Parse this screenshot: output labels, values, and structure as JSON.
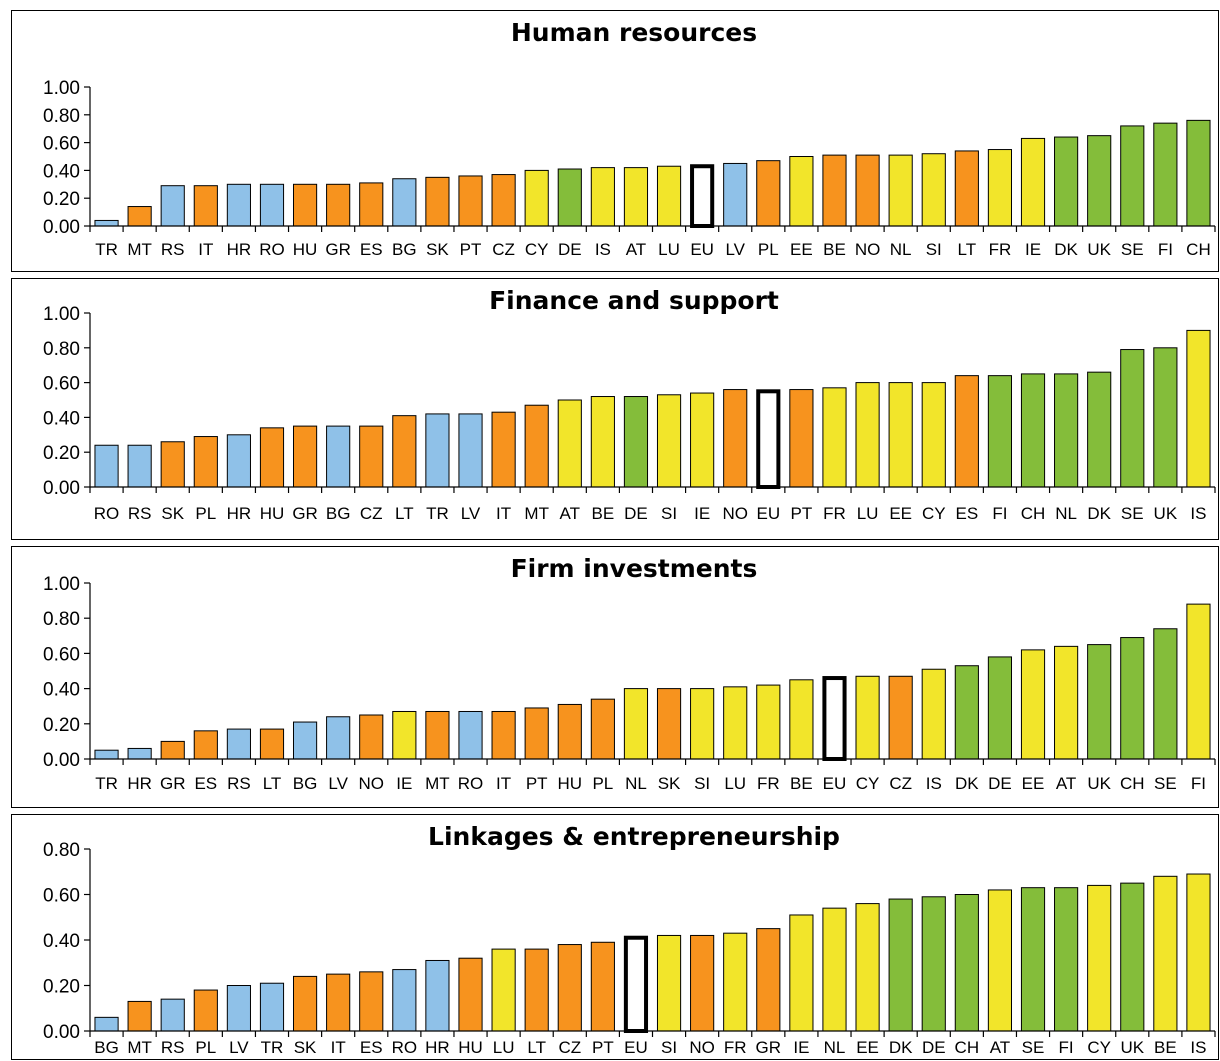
{
  "colors": {
    "blue": "#8fc1e8",
    "orange": "#f7931e",
    "yellow": "#f2e52a",
    "green": "#84bd3a",
    "eu": "#ffffff"
  },
  "chart_data": [
    {
      "type": "bar",
      "title": "Human resources",
      "ylim": [
        0,
        1.0
      ],
      "yticks": [
        "0.00",
        "0.20",
        "0.40",
        "0.60",
        "0.80",
        "1.00"
      ],
      "grid": false,
      "categories": [
        "TR",
        "MT",
        "RS",
        "IT",
        "HR",
        "RO",
        "HU",
        "GR",
        "ES",
        "BG",
        "SK",
        "PT",
        "CZ",
        "CY",
        "DE",
        "IS",
        "AT",
        "LU",
        "EU",
        "LV",
        "PL",
        "EE",
        "BE",
        "NO",
        "NL",
        "SI",
        "LT",
        "FR",
        "IE",
        "DK",
        "UK",
        "SE",
        "FI",
        "CH"
      ],
      "values": [
        0.04,
        0.14,
        0.29,
        0.29,
        0.3,
        0.3,
        0.3,
        0.3,
        0.31,
        0.34,
        0.35,
        0.36,
        0.37,
        0.4,
        0.41,
        0.42,
        0.42,
        0.43,
        0.43,
        0.45,
        0.47,
        0.5,
        0.51,
        0.51,
        0.51,
        0.52,
        0.54,
        0.55,
        0.63,
        0.64,
        0.65,
        0.72,
        0.74,
        0.76
      ],
      "colors": [
        "blue",
        "orange",
        "blue",
        "orange",
        "blue",
        "blue",
        "orange",
        "orange",
        "orange",
        "blue",
        "orange",
        "orange",
        "orange",
        "yellow",
        "green",
        "yellow",
        "yellow",
        "yellow",
        "eu",
        "blue",
        "orange",
        "yellow",
        "orange",
        "orange",
        "yellow",
        "yellow",
        "orange",
        "yellow",
        "yellow",
        "green",
        "green",
        "green",
        "green",
        "green"
      ]
    },
    {
      "type": "bar",
      "title": "Finance and support",
      "ylim": [
        0,
        1.0
      ],
      "yticks": [
        "0.00",
        "0.20",
        "0.40",
        "0.60",
        "0.80",
        "1.00"
      ],
      "grid": false,
      "categories": [
        "RO",
        "RS",
        "SK",
        "PL",
        "HR",
        "HU",
        "GR",
        "BG",
        "CZ",
        "LT",
        "TR",
        "LV",
        "IT",
        "MT",
        "AT",
        "BE",
        "DE",
        "SI",
        "IE",
        "NO",
        "EU",
        "PT",
        "FR",
        "LU",
        "EE",
        "CY",
        "ES",
        "FI",
        "CH",
        "NL",
        "DK",
        "SE",
        "UK",
        "IS"
      ],
      "values": [
        0.24,
        0.24,
        0.26,
        0.29,
        0.3,
        0.34,
        0.35,
        0.35,
        0.35,
        0.41,
        0.42,
        0.42,
        0.43,
        0.47,
        0.5,
        0.52,
        0.52,
        0.53,
        0.54,
        0.56,
        0.55,
        0.56,
        0.57,
        0.6,
        0.6,
        0.6,
        0.64,
        0.64,
        0.65,
        0.65,
        0.66,
        0.79,
        0.8,
        0.9
      ],
      "colors": [
        "blue",
        "blue",
        "orange",
        "orange",
        "blue",
        "orange",
        "orange",
        "blue",
        "orange",
        "orange",
        "blue",
        "blue",
        "orange",
        "orange",
        "yellow",
        "yellow",
        "green",
        "yellow",
        "yellow",
        "orange",
        "eu",
        "orange",
        "yellow",
        "yellow",
        "yellow",
        "yellow",
        "orange",
        "green",
        "green",
        "green",
        "green",
        "green",
        "green",
        "yellow"
      ]
    },
    {
      "type": "bar",
      "title": "Firm investments",
      "ylim": [
        0,
        1.0
      ],
      "yticks": [
        "0.00",
        "0.20",
        "0.40",
        "0.60",
        "0.80",
        "1.00"
      ],
      "grid": false,
      "categories": [
        "TR",
        "HR",
        "GR",
        "ES",
        "RS",
        "LT",
        "BG",
        "LV",
        "NO",
        "IE",
        "MT",
        "RO",
        "IT",
        "PT",
        "HU",
        "PL",
        "NL",
        "SK",
        "SI",
        "LU",
        "FR",
        "BE",
        "EU",
        "CY",
        "CZ",
        "IS",
        "DK",
        "DE",
        "EE",
        "AT",
        "UK",
        "CH",
        "SE",
        "FI"
      ],
      "values": [
        0.05,
        0.06,
        0.1,
        0.16,
        0.17,
        0.17,
        0.21,
        0.24,
        0.25,
        0.27,
        0.27,
        0.27,
        0.27,
        0.29,
        0.31,
        0.34,
        0.4,
        0.4,
        0.4,
        0.41,
        0.42,
        0.45,
        0.46,
        0.47,
        0.47,
        0.51,
        0.53,
        0.58,
        0.62,
        0.64,
        0.65,
        0.69,
        0.74,
        0.88
      ],
      "colors": [
        "blue",
        "blue",
        "orange",
        "orange",
        "blue",
        "orange",
        "blue",
        "blue",
        "orange",
        "yellow",
        "orange",
        "blue",
        "orange",
        "orange",
        "orange",
        "orange",
        "yellow",
        "orange",
        "yellow",
        "yellow",
        "yellow",
        "yellow",
        "eu",
        "yellow",
        "orange",
        "yellow",
        "green",
        "green",
        "yellow",
        "yellow",
        "green",
        "green",
        "green",
        "yellow"
      ]
    },
    {
      "type": "bar",
      "title": "Linkages & entrepreneurship",
      "ylim": [
        0,
        0.8
      ],
      "yticks": [
        "0.00",
        "0.20",
        "0.40",
        "0.60",
        "0.80"
      ],
      "grid": false,
      "categories": [
        "BG",
        "MT",
        "RS",
        "PL",
        "LV",
        "TR",
        "SK",
        "IT",
        "ES",
        "RO",
        "HR",
        "HU",
        "LU",
        "LT",
        "CZ",
        "PT",
        "EU",
        "SI",
        "NO",
        "FR",
        "GR",
        "IE",
        "NL",
        "EE",
        "DK",
        "DE",
        "CH",
        "AT",
        "SE",
        "FI",
        "CY",
        "UK",
        "BE",
        "IS"
      ],
      "values": [
        0.06,
        0.13,
        0.14,
        0.18,
        0.2,
        0.21,
        0.24,
        0.25,
        0.26,
        0.27,
        0.31,
        0.32,
        0.36,
        0.36,
        0.38,
        0.39,
        0.41,
        0.42,
        0.42,
        0.43,
        0.45,
        0.51,
        0.54,
        0.56,
        0.58,
        0.59,
        0.6,
        0.62,
        0.63,
        0.63,
        0.64,
        0.65,
        0.68,
        0.69
      ],
      "colors": [
        "blue",
        "orange",
        "blue",
        "orange",
        "blue",
        "blue",
        "orange",
        "orange",
        "orange",
        "blue",
        "blue",
        "orange",
        "yellow",
        "orange",
        "orange",
        "orange",
        "eu",
        "yellow",
        "orange",
        "yellow",
        "orange",
        "yellow",
        "yellow",
        "yellow",
        "green",
        "green",
        "green",
        "yellow",
        "green",
        "green",
        "yellow",
        "green",
        "yellow",
        "yellow"
      ]
    }
  ]
}
